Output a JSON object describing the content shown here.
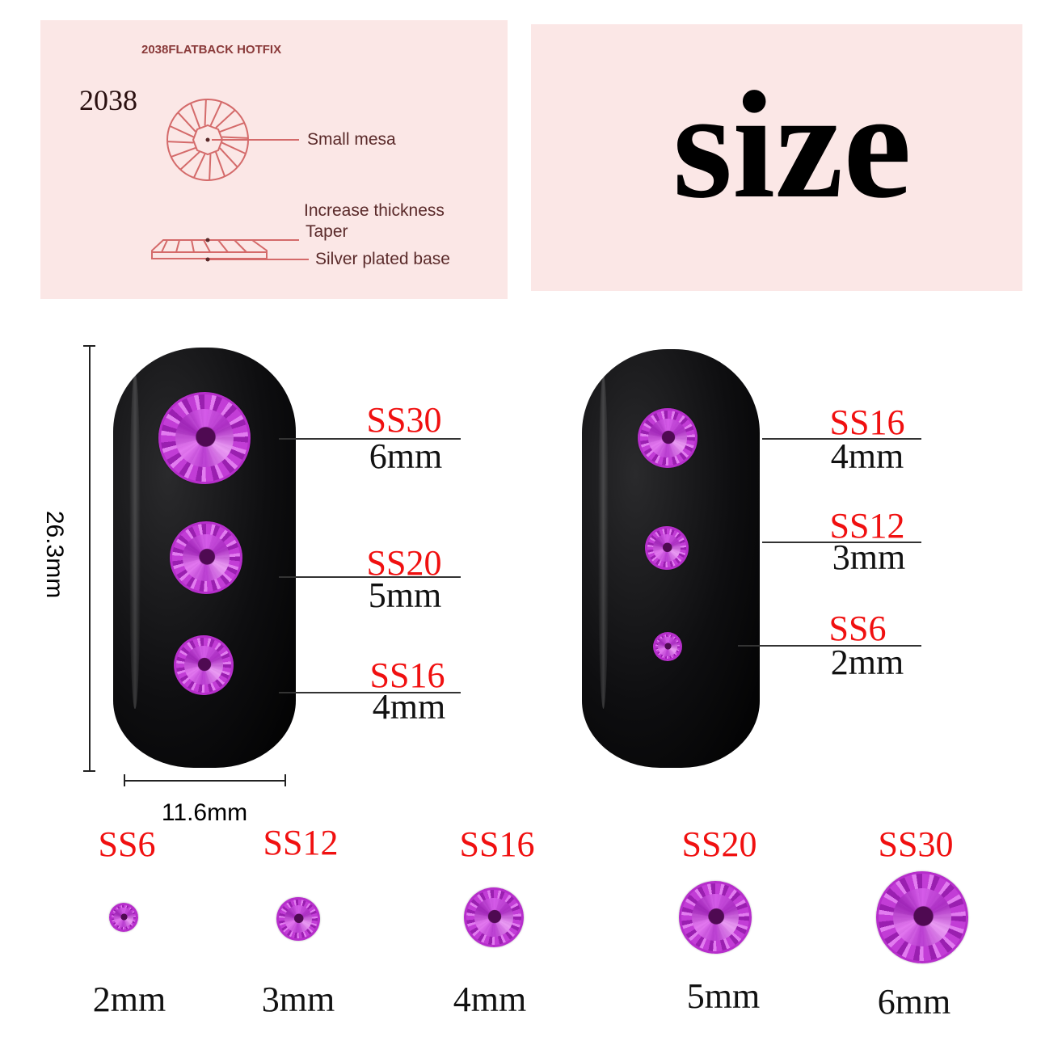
{
  "diagram": {
    "title": "2038FLATBACK HOTFIX",
    "model": "2038",
    "labels": {
      "small_mesa": "Small mesa",
      "increase_thickness": "Increase thickness",
      "taper": "Taper",
      "base": "Silver plated base"
    },
    "line_color": "#d46a6a"
  },
  "headline": "size",
  "dimensions": {
    "height": "26.3mm",
    "width": "11.6mm"
  },
  "left_nail": [
    {
      "size": "SS30",
      "mm": "6mm"
    },
    {
      "size": "SS20",
      "mm": "5mm"
    },
    {
      "size": "SS16",
      "mm": "4mm"
    }
  ],
  "right_nail": [
    {
      "size": "SS16",
      "mm": "4mm"
    },
    {
      "size": "SS12",
      "mm": "3mm"
    },
    {
      "size": "SS6",
      "mm": "2mm"
    }
  ],
  "bottom_row": [
    {
      "size": "SS6",
      "mm": "2mm"
    },
    {
      "size": "SS12",
      "mm": "3mm"
    },
    {
      "size": "SS16",
      "mm": "4mm"
    },
    {
      "size": "SS20",
      "mm": "5mm"
    },
    {
      "size": "SS30",
      "mm": "6mm"
    }
  ],
  "colors": {
    "panel_bg": "#fbe7e6",
    "size_label": "#f01010",
    "stone": "#c23dd6",
    "nail": "#0e0e10"
  }
}
